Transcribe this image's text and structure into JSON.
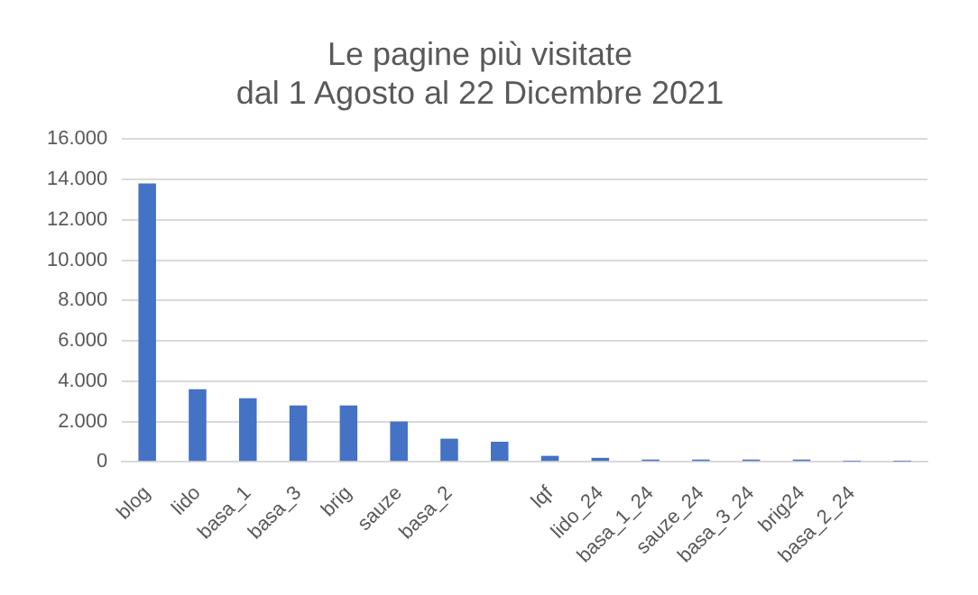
{
  "chart_data": {
    "type": "bar",
    "title": "Le pagine più visitate\ndal 1 Agosto al 22 Dicembre 2021",
    "categories": [
      "blog",
      "lido",
      "basa_1",
      "basa_3",
      "brig",
      "sauze",
      "basa_2",
      null,
      "lqf",
      "lido_24",
      "basa_1_24",
      "sauze_24",
      "basa_3_24",
      "brig24",
      "basa_2_24",
      null
    ],
    "values": [
      13800,
      3600,
      3150,
      2800,
      2800,
      2000,
      1150,
      1000,
      300,
      200,
      120,
      120,
      120,
      120,
      20,
      10
    ],
    "color": "#4472c4",
    "ylim": [
      0,
      16000
    ],
    "yticks": [
      0,
      {
        "value": 2000,
        "label": "2.000"
      },
      {
        "value": 4000,
        "label": "4.000"
      },
      {
        "value": 6000,
        "label": "6.000"
      },
      {
        "value": 8000,
        "label": "8.000"
      },
      {
        "value": 10000,
        "label": "10.000"
      },
      {
        "value": 12000,
        "label": "12.000"
      },
      {
        "value": 14000,
        "label": "14.000"
      },
      {
        "value": 16000,
        "label": "16.000"
      }
    ],
    "grid": "y",
    "legend": false
  }
}
